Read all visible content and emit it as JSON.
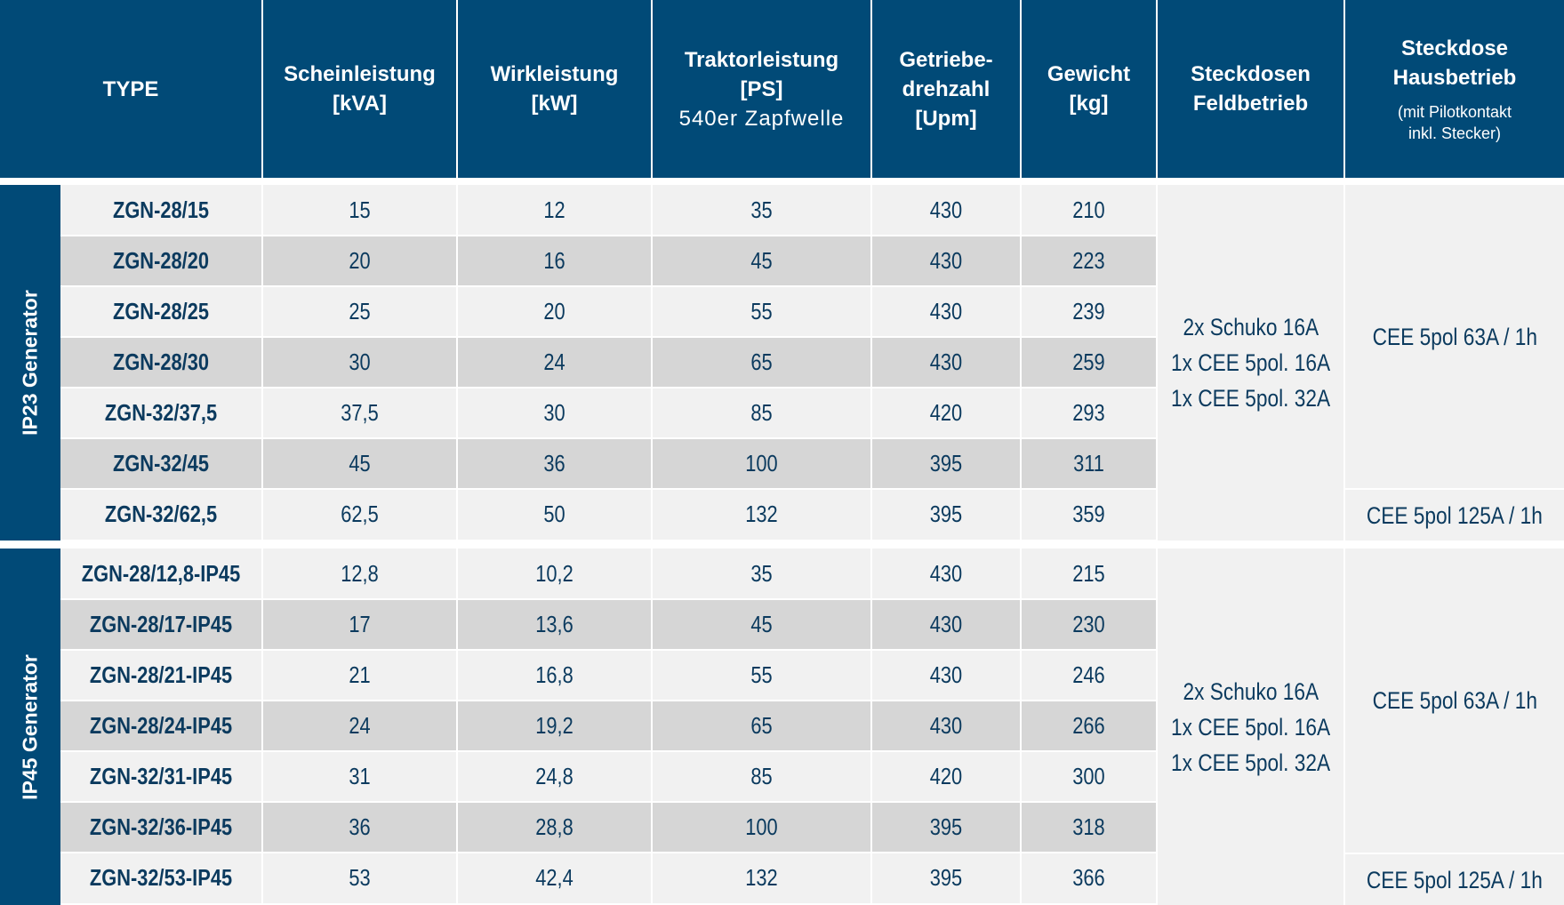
{
  "header": {
    "type": "TYPE",
    "schein_l1": "Scheinleistung",
    "schein_l2": "[kVA]",
    "wirk_l1": "Wirkleistung",
    "wirk_l2": "[kW]",
    "trakt_l1": "Traktorleistung",
    "trakt_l2": "[PS]",
    "trakt_l3": "540er Zapfwelle",
    "getr_l1": "Getriebe-",
    "getr_l2": "drehzahl",
    "getr_l3": "[Upm]",
    "gew_l1": "Gewicht",
    "gew_l2": "[kg]",
    "feld_l1": "Steckdosen",
    "feld_l2": "Feldbetrieb",
    "haus_l1": "Steckdose",
    "haus_l2": "Hausbetrieb",
    "haus_note1": "(mit Pilotkontakt",
    "haus_note2": "inkl. Stecker)"
  },
  "groups": [
    {
      "label": "IP23 Generator",
      "feld": [
        "2x Schuko 16A",
        "1x CEE 5pol. 16A",
        "1x CEE 5pol. 32A"
      ],
      "haus_main": "CEE 5pol 63A / 1h",
      "haus_last": "CEE 5pol 125A / 1h",
      "rows": [
        {
          "type": "ZGN-28/15",
          "kva": "15",
          "kw": "12",
          "ps": "35",
          "upm": "430",
          "kg": "210"
        },
        {
          "type": "ZGN-28/20",
          "kva": "20",
          "kw": "16",
          "ps": "45",
          "upm": "430",
          "kg": "223"
        },
        {
          "type": "ZGN-28/25",
          "kva": "25",
          "kw": "20",
          "ps": "55",
          "upm": "430",
          "kg": "239"
        },
        {
          "type": "ZGN-28/30",
          "kva": "30",
          "kw": "24",
          "ps": "65",
          "upm": "430",
          "kg": "259"
        },
        {
          "type": "ZGN-32/37,5",
          "kva": "37,5",
          "kw": "30",
          "ps": "85",
          "upm": "420",
          "kg": "293"
        },
        {
          "type": "ZGN-32/45",
          "kva": "45",
          "kw": "36",
          "ps": "100",
          "upm": "395",
          "kg": "311"
        },
        {
          "type": "ZGN-32/62,5",
          "kva": "62,5",
          "kw": "50",
          "ps": "132",
          "upm": "395",
          "kg": "359"
        }
      ]
    },
    {
      "label": "IP45 Generator",
      "feld": [
        "2x Schuko 16A",
        "1x CEE 5pol. 16A",
        "1x CEE 5pol. 32A"
      ],
      "haus_main": "CEE 5pol 63A / 1h",
      "haus_last": "CEE 5pol 125A / 1h",
      "rows": [
        {
          "type": "ZGN-28/12,8-IP45",
          "kva": "12,8",
          "kw": "10,2",
          "ps": "35",
          "upm": "430",
          "kg": "215"
        },
        {
          "type": "ZGN-28/17-IP45",
          "kva": "17",
          "kw": "13,6",
          "ps": "45",
          "upm": "430",
          "kg": "230"
        },
        {
          "type": "ZGN-28/21-IP45",
          "kva": "21",
          "kw": "16,8",
          "ps": "55",
          "upm": "430",
          "kg": "246"
        },
        {
          "type": "ZGN-28/24-IP45",
          "kva": "24",
          "kw": "19,2",
          "ps": "65",
          "upm": "430",
          "kg": "266"
        },
        {
          "type": "ZGN-32/31-IP45",
          "kva": "31",
          "kw": "24,8",
          "ps": "85",
          "upm": "420",
          "kg": "300"
        },
        {
          "type": "ZGN-32/36-IP45",
          "kva": "36",
          "kw": "28,8",
          "ps": "100",
          "upm": "395",
          "kg": "318"
        },
        {
          "type": "ZGN-32/53-IP45",
          "kva": "53",
          "kw": "42,4",
          "ps": "132",
          "upm": "395",
          "kg": "366"
        }
      ]
    }
  ]
}
